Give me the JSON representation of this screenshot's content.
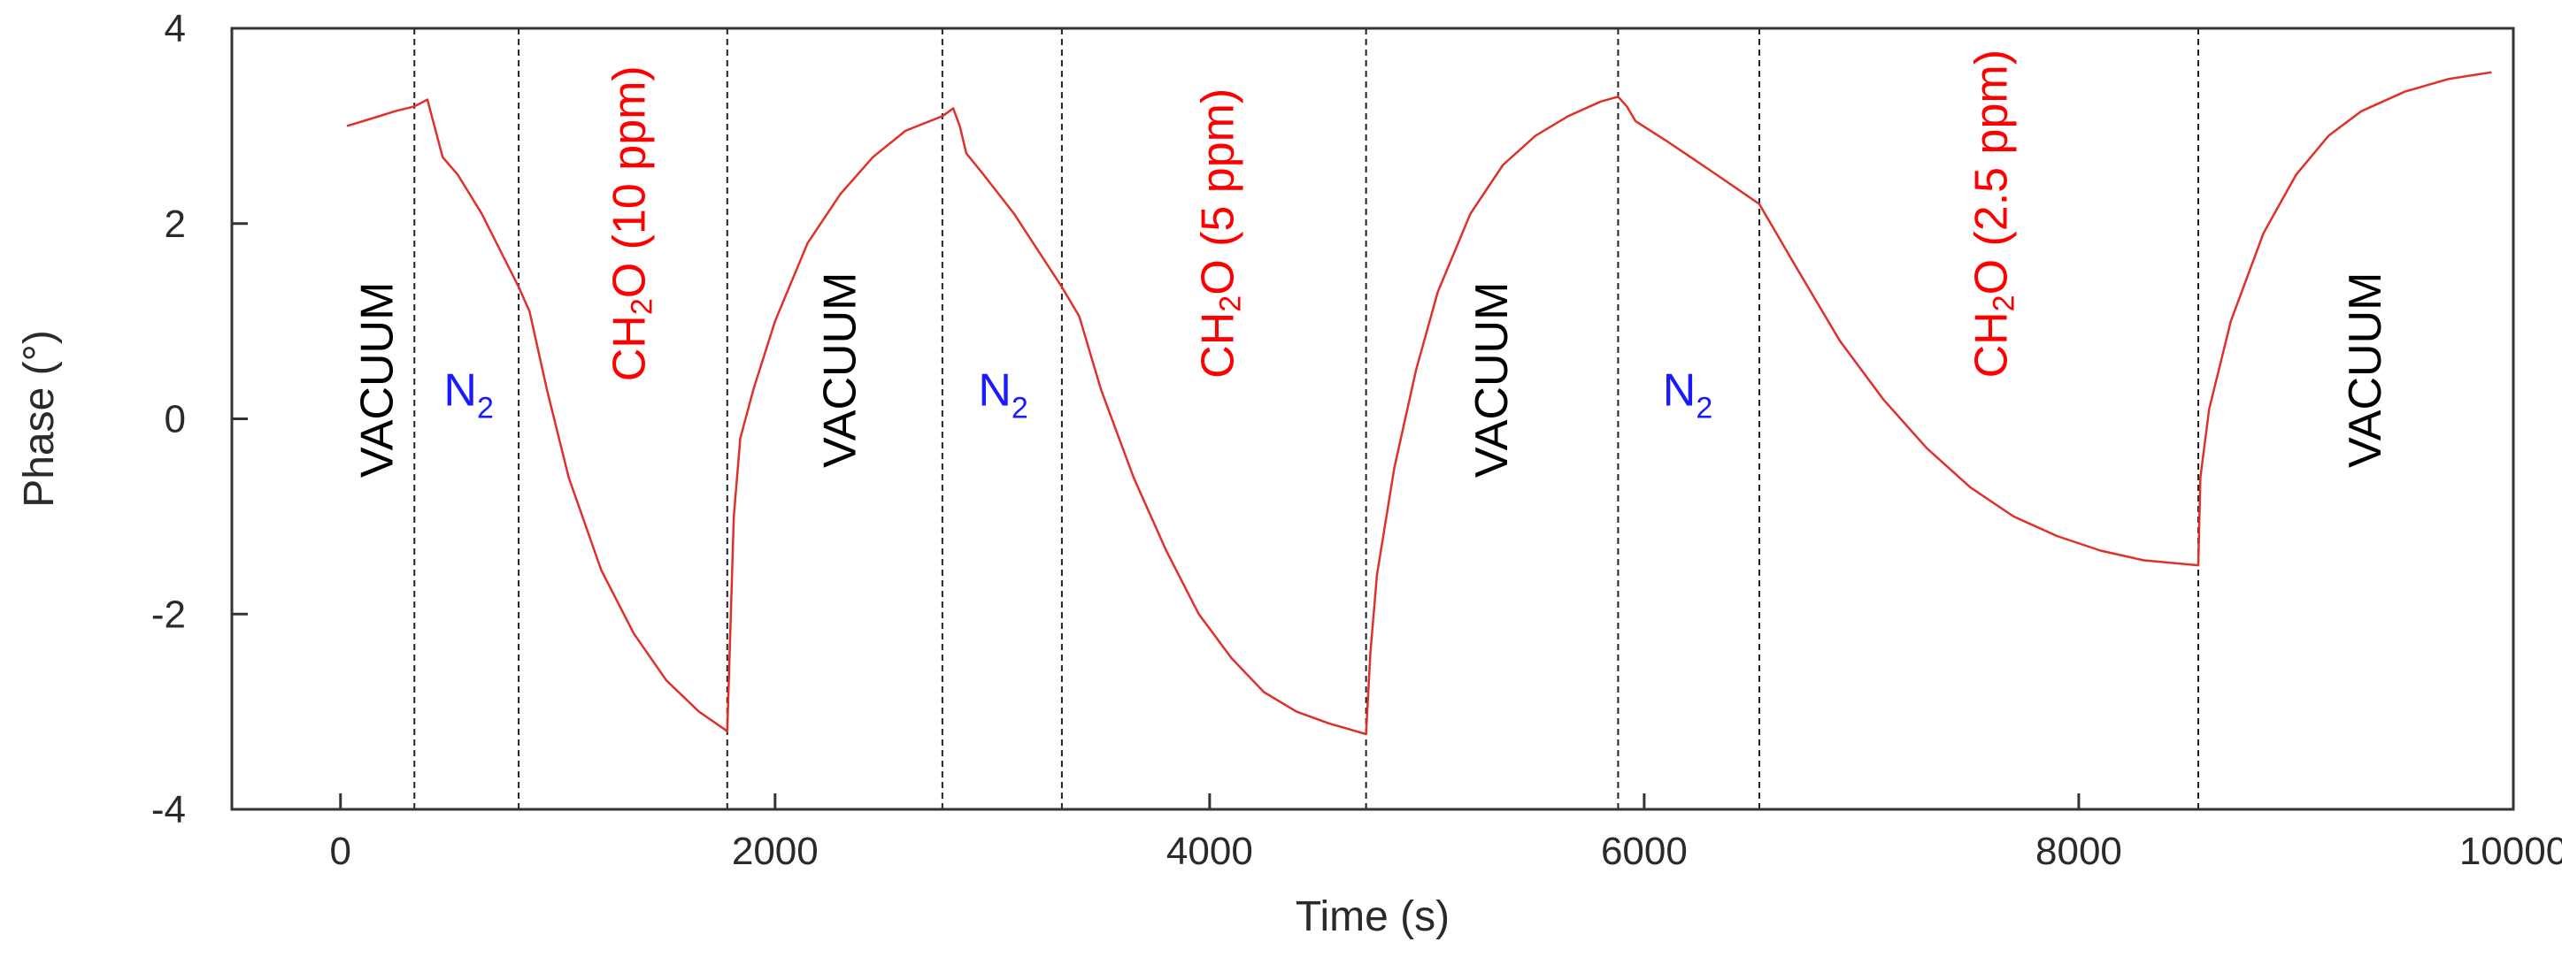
{
  "chart_data": {
    "type": "line",
    "title": "",
    "xlabel": "Time (s)",
    "ylabel": "Phase (°)",
    "xlim": [
      -500,
      10000
    ],
    "ylim": [
      -4,
      4
    ],
    "xticks": [
      0,
      2000,
      4000,
      6000,
      8000,
      10000
    ],
    "xtick_labels": [
      "0",
      "2000",
      "4000",
      "6000",
      "8000",
      "10000"
    ],
    "yticks": [
      -4,
      -2,
      0,
      2,
      4
    ],
    "ytick_labels": [
      "-4",
      "-2",
      "0",
      "2",
      "4"
    ],
    "grid": false,
    "line_color": "#e0302a",
    "boundary_times": [
      340,
      820,
      1780,
      2770,
      3320,
      4720,
      5880,
      6530,
      8550
    ],
    "series": [
      {
        "name": "Phase",
        "color": "#e0302a",
        "points": [
          [
            30,
            3.0
          ],
          [
            150,
            3.08
          ],
          [
            250,
            3.15
          ],
          [
            340,
            3.2
          ],
          [
            400,
            3.27
          ],
          [
            420,
            3.1
          ],
          [
            470,
            2.68
          ],
          [
            540,
            2.5
          ],
          [
            650,
            2.1
          ],
          [
            820,
            1.35
          ],
          [
            870,
            1.1
          ],
          [
            950,
            0.3
          ],
          [
            1050,
            -0.6
          ],
          [
            1200,
            -1.55
          ],
          [
            1350,
            -2.2
          ],
          [
            1500,
            -2.68
          ],
          [
            1650,
            -3.0
          ],
          [
            1780,
            -3.2
          ],
          [
            1810,
            -1.0
          ],
          [
            1840,
            -0.2
          ],
          [
            1900,
            0.3
          ],
          [
            2000,
            1.0
          ],
          [
            2150,
            1.8
          ],
          [
            2300,
            2.3
          ],
          [
            2450,
            2.68
          ],
          [
            2600,
            2.95
          ],
          [
            2770,
            3.1
          ],
          [
            2820,
            3.18
          ],
          [
            2850,
            3.0
          ],
          [
            2880,
            2.72
          ],
          [
            2960,
            2.5
          ],
          [
            3100,
            2.1
          ],
          [
            3320,
            1.35
          ],
          [
            3400,
            1.05
          ],
          [
            3500,
            0.3
          ],
          [
            3650,
            -0.6
          ],
          [
            3800,
            -1.35
          ],
          [
            3950,
            -2.0
          ],
          [
            4100,
            -2.45
          ],
          [
            4250,
            -2.8
          ],
          [
            4400,
            -3.0
          ],
          [
            4550,
            -3.12
          ],
          [
            4720,
            -3.23
          ],
          [
            4740,
            -2.4
          ],
          [
            4770,
            -1.6
          ],
          [
            4850,
            -0.5
          ],
          [
            4950,
            0.5
          ],
          [
            5050,
            1.3
          ],
          [
            5200,
            2.1
          ],
          [
            5350,
            2.6
          ],
          [
            5500,
            2.9
          ],
          [
            5650,
            3.1
          ],
          [
            5800,
            3.25
          ],
          [
            5880,
            3.3
          ],
          [
            5920,
            3.2
          ],
          [
            5960,
            3.05
          ],
          [
            6100,
            2.85
          ],
          [
            6300,
            2.55
          ],
          [
            6530,
            2.2
          ],
          [
            6700,
            1.55
          ],
          [
            6900,
            0.8
          ],
          [
            7100,
            0.2
          ],
          [
            7300,
            -0.3
          ],
          [
            7500,
            -0.7
          ],
          [
            7700,
            -1.0
          ],
          [
            7900,
            -1.2
          ],
          [
            8100,
            -1.35
          ],
          [
            8300,
            -1.45
          ],
          [
            8550,
            -1.5
          ],
          [
            8560,
            -0.6
          ],
          [
            8600,
            0.1
          ],
          [
            8700,
            1.0
          ],
          [
            8850,
            1.9
          ],
          [
            9000,
            2.5
          ],
          [
            9150,
            2.9
          ],
          [
            9300,
            3.15
          ],
          [
            9500,
            3.35
          ],
          [
            9700,
            3.48
          ],
          [
            9900,
            3.55
          ]
        ]
      }
    ],
    "segment_labels": [
      {
        "text": "VACUUM",
        "sub": "",
        "post": "",
        "color": "#000000",
        "x": 170,
        "y": 0.4,
        "vertical": true
      },
      {
        "text": "N",
        "sub": "2",
        "post": "",
        "color": "#1a1aff",
        "x": 590,
        "y": 0.3,
        "vertical": false
      },
      {
        "text": "CH",
        "sub": "2",
        "post": "O (10 ppm)",
        "color": "#ff0000",
        "x": 1330,
        "y": 2.0,
        "vertical": true
      },
      {
        "text": "VACUUM",
        "sub": "",
        "post": "",
        "color": "#000000",
        "x": 2300,
        "y": 0.5,
        "vertical": true
      },
      {
        "text": "N",
        "sub": "2",
        "post": "",
        "color": "#1a1aff",
        "x": 3050,
        "y": 0.3,
        "vertical": false
      },
      {
        "text": "CH",
        "sub": "2",
        "post": "O (5 ppm)",
        "color": "#ff0000",
        "x": 4040,
        "y": 1.9,
        "vertical": true
      },
      {
        "text": "VACUUM",
        "sub": "",
        "post": "",
        "color": "#000000",
        "x": 5300,
        "y": 0.4,
        "vertical": true
      },
      {
        "text": "N",
        "sub": "2",
        "post": "",
        "color": "#1a1aff",
        "x": 6200,
        "y": 0.3,
        "vertical": false
      },
      {
        "text": "CH",
        "sub": "2",
        "post": "O (2.5 ppm)",
        "color": "#ff0000",
        "x": 7600,
        "y": 2.1,
        "vertical": true
      },
      {
        "text": "VACUUM",
        "sub": "",
        "post": "",
        "color": "#000000",
        "x": 9320,
        "y": 0.5,
        "vertical": true
      }
    ]
  }
}
